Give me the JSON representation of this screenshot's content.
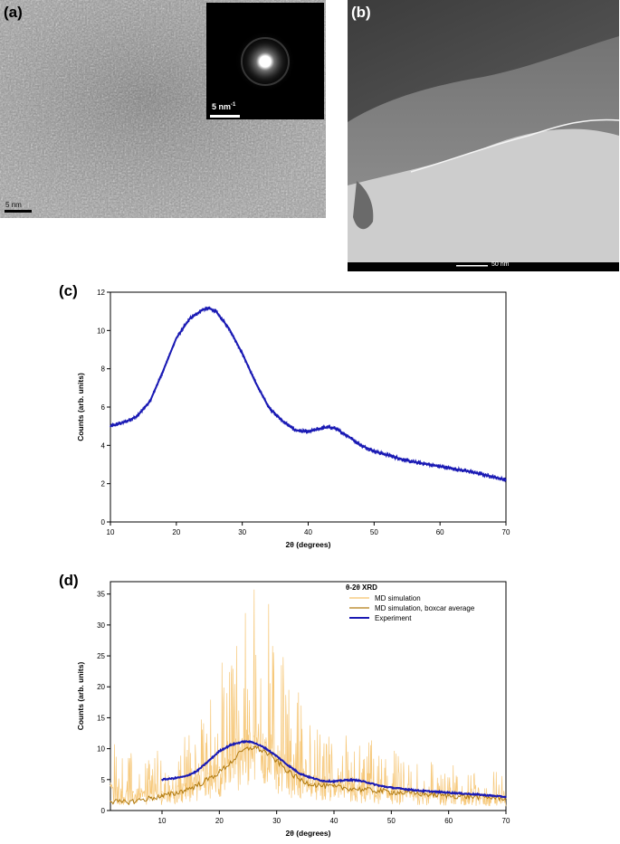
{
  "panels": {
    "a": {
      "label": "(a)",
      "scale_bar": "5 nm",
      "inset_scale_bar": "5 nm",
      "inset_scale_superscript": "-1"
    },
    "b": {
      "label": "(b)",
      "scale_bar": "50 nm"
    },
    "c": {
      "label": "(c)"
    },
    "d": {
      "label": "(d)"
    }
  },
  "chart_data": [
    {
      "type": "line",
      "panel": "c",
      "xlabel": "2θ (degrees)",
      "ylabel": "Counts (arb. units)",
      "xlim": [
        10,
        70
      ],
      "ylim": [
        0,
        12
      ],
      "xticks": [
        10,
        20,
        30,
        40,
        50,
        60,
        70
      ],
      "yticks": [
        0,
        2,
        4,
        6,
        8,
        10,
        12
      ],
      "series": [
        {
          "color": "#1a1ab4",
          "x": [
            10,
            12,
            14,
            16,
            18,
            20,
            22,
            24,
            25,
            26,
            28,
            30,
            32,
            34,
            36,
            38,
            40,
            42,
            43,
            44,
            46,
            48,
            50,
            55,
            60,
            65,
            70
          ],
          "y": [
            5.0,
            5.2,
            5.5,
            6.3,
            7.9,
            9.6,
            10.6,
            11.1,
            11.15,
            11.0,
            10.1,
            8.8,
            7.3,
            6.0,
            5.3,
            4.8,
            4.7,
            4.9,
            4.95,
            4.9,
            4.5,
            4.0,
            3.7,
            3.2,
            2.9,
            2.6,
            2.2
          ]
        }
      ]
    },
    {
      "type": "line",
      "panel": "d",
      "title": "θ-2θ XRD",
      "xlabel": "2θ (degrees)",
      "ylabel": "Counts (arb. units)",
      "xlim": [
        1,
        70
      ],
      "ylim": [
        0,
        37
      ],
      "xticks": [
        10,
        20,
        30,
        40,
        50,
        60,
        70
      ],
      "yticks": [
        0,
        5,
        10,
        15,
        20,
        25,
        30,
        35
      ],
      "legend_position": "top-right",
      "series": [
        {
          "name": "MD simulation",
          "color": "#f5c26b",
          "x": [
            1,
            3,
            5,
            8,
            10,
            12,
            14,
            16,
            18,
            20,
            22,
            24,
            26,
            28,
            30,
            32,
            34,
            36,
            38,
            40,
            45,
            50,
            55,
            60,
            65,
            70
          ],
          "y": [
            4,
            3,
            3,
            3,
            3,
            3,
            4,
            5,
            6,
            7,
            9,
            11,
            12,
            11,
            9,
            7,
            6,
            5,
            4.5,
            4,
            3.6,
            3.2,
            2.9,
            2.6,
            2.3,
            2.0
          ]
        },
        {
          "name": "MD simulation, boxcar average",
          "color": "#b07a10",
          "x": [
            1,
            3,
            5,
            8,
            10,
            12,
            14,
            16,
            18,
            20,
            22,
            24,
            26,
            28,
            30,
            32,
            34,
            36,
            38,
            40,
            45,
            50,
            55,
            60,
            65,
            70
          ],
          "y": [
            1.5,
            1.3,
            1.5,
            2.0,
            2.3,
            2.7,
            3.3,
            4.0,
            5.0,
            6.2,
            7.8,
            9.6,
            10.3,
            9.5,
            8.0,
            6.3,
            5.0,
            4.3,
            4.0,
            3.8,
            3.4,
            3.0,
            2.7,
            2.4,
            2.2,
            2.0
          ]
        },
        {
          "name": "Experiment",
          "color": "#1a1ab4",
          "x": [
            10,
            12,
            14,
            16,
            18,
            20,
            22,
            24,
            25,
            26,
            28,
            30,
            32,
            34,
            36,
            38,
            40,
            42,
            43,
            44,
            46,
            48,
            50,
            55,
            60,
            65,
            70
          ],
          "y": [
            5.0,
            5.2,
            5.5,
            6.3,
            7.9,
            9.6,
            10.6,
            11.1,
            11.15,
            11.0,
            10.1,
            8.8,
            7.3,
            6.0,
            5.3,
            4.8,
            4.7,
            4.9,
            4.95,
            4.9,
            4.5,
            4.0,
            3.7,
            3.2,
            2.9,
            2.6,
            2.2
          ]
        }
      ]
    }
  ]
}
